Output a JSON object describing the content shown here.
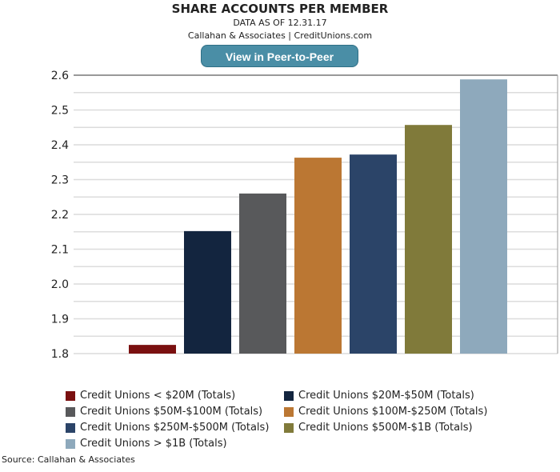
{
  "header": {
    "title": "SHARE ACCOUNTS PER MEMBER",
    "subtitle": "DATA AS OF 12.31.17",
    "credit": "Callahan & Associates | CreditUnions.com",
    "button_label": "View in Peer-to-Peer"
  },
  "source": "Source: Callahan & Associates",
  "chart_data": {
    "type": "bar",
    "title": "SHARE ACCOUNTS PER MEMBER",
    "ylim": [
      1.8,
      2.6
    ],
    "yticks": [
      "1.8",
      "1.9",
      "2.0",
      "2.1",
      "2.2",
      "2.3",
      "2.4",
      "2.5",
      "2.6"
    ],
    "grid": true,
    "legend_placement": "bottom",
    "series": [
      {
        "name": "Credit Unions < $20M (Totals)",
        "value": 1.825,
        "color": "#7a1010"
      },
      {
        "name": "Credit Unions $20M-$50M (Totals)",
        "value": 2.152,
        "color": "#13253f"
      },
      {
        "name": "Credit Unions $50M-$100M (Totals)",
        "value": 2.26,
        "color": "#58595b"
      },
      {
        "name": "Credit Unions $100M-$250M (Totals)",
        "value": 2.363,
        "color": "#bb7733"
      },
      {
        "name": "Credit Unions $250M-$500M (Totals)",
        "value": 2.372,
        "color": "#2b4468"
      },
      {
        "name": "Credit Unions $500M-$1B (Totals)",
        "value": 2.457,
        "color": "#807a3a"
      },
      {
        "name": "Credit Unions > $1B (Totals)",
        "value": 2.588,
        "color": "#8ea9bc"
      }
    ]
  }
}
